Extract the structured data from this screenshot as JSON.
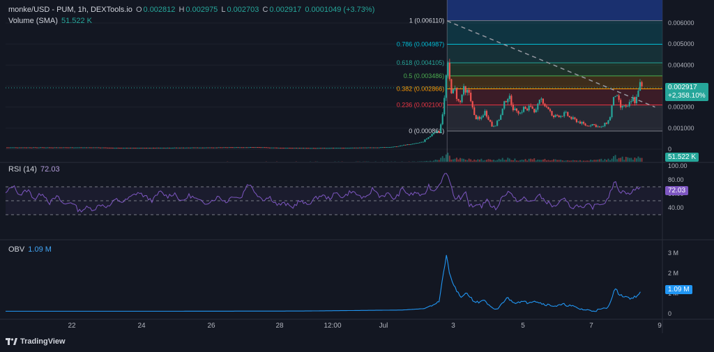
{
  "header": {
    "symbol": "monke/USD - PUM, 1h, DEXTools.io",
    "open_k": "O",
    "open": "0.002812",
    "high_k": "H",
    "high": "0.002975",
    "low_k": "L",
    "low": "0.002703",
    "close_k": "C",
    "close": "0.002917",
    "change": "0.0001049 (+3.73%)",
    "volume_label": "Volume (SMA)",
    "volume_value": "51.522 K"
  },
  "rsi_panel": {
    "label": "RSI (14)",
    "value": "72.03"
  },
  "obv_panel": {
    "label": "OBV",
    "value": "1.09 M"
  },
  "price_tag": {
    "price": "0.002917",
    "change": "+2,358.10%"
  },
  "volume_tag": "51.522 K",
  "rsi_tag": "72.03",
  "obv_tag": "1.09 M",
  "brand": "TradingView",
  "colors": {
    "background": "#131722",
    "up": "#26a69a",
    "down": "#ef5350",
    "rsi": "#7e57c2",
    "obv": "#2196f3",
    "selection": "#1e3a8a"
  },
  "chart_data": {
    "type": "candlestick",
    "price_axis": {
      "ticks": [
        0.006,
        0.005,
        0.004,
        0.003,
        0.002,
        0.001,
        0
      ],
      "tick_labels": [
        "0.006000",
        "0.005000",
        "0.004000",
        "0.003000",
        "0.002000",
        "0.001000",
        "0"
      ]
    },
    "time_axis": {
      "labels": [
        "22",
        "24",
        "26",
        "28",
        "12:00",
        "Jul",
        "3",
        "5",
        "7",
        "9"
      ]
    },
    "fibonacci": [
      {
        "ratio": "1",
        "price": 0.00611,
        "label": "1 (0.006110)",
        "color": "#787b86"
      },
      {
        "ratio": "0.786",
        "price": 0.004987,
        "label": "0.786 (0.004987)",
        "color": "#00bcd4"
      },
      {
        "ratio": "0.618",
        "price": 0.004105,
        "label": "0.618 (0.004105)",
        "color": "#26a69a"
      },
      {
        "ratio": "0.5",
        "price": 0.003486,
        "label": "0.5 (0.003486)",
        "color": "#4caf50"
      },
      {
        "ratio": "0.382",
        "price": 0.002866,
        "label": "0.382 (0.002866)",
        "color": "#ff9800"
      },
      {
        "ratio": "0.236",
        "price": 0.0021,
        "label": "0.236 (0.002100)",
        "color": "#f23645"
      },
      {
        "ratio": "0",
        "price": 0.000861,
        "label": "0 (0.000861)",
        "color": "#787b86"
      }
    ],
    "price_series": [
      {
        "t": 0,
        "p": 8e-05
      },
      {
        "t": 6,
        "p": 8e-05
      },
      {
        "t": 8,
        "p": 6e-05
      },
      {
        "t": 12,
        "p": 7e-05
      },
      {
        "t": 17,
        "p": 9e-05
      },
      {
        "t": 19,
        "p": 6e-05
      },
      {
        "t": 21,
        "p": 5e-05
      },
      {
        "t": 24,
        "p": 7e-05
      },
      {
        "t": 26,
        "p": 9e-05
      },
      {
        "t": 26.6,
        "p": 0.00013
      },
      {
        "t": 27.3,
        "p": 0.00022
      },
      {
        "t": 27.8,
        "p": 0.00025
      },
      {
        "t": 28.4,
        "p": 0.00035
      },
      {
        "t": 28.6,
        "p": 0.00048
      },
      {
        "t": 28.9,
        "p": 0.00062
      },
      {
        "t": 29.2,
        "p": 0.00085
      },
      {
        "t": 29.5,
        "p": 0.00082
      },
      {
        "t": 29.7,
        "p": 0.0015
      },
      {
        "t": 29.9,
        "p": 0.0026
      },
      {
        "t": 30.05,
        "p": 0.0042
      },
      {
        "t": 30.15,
        "p": 0.0036
      },
      {
        "t": 30.25,
        "p": 0.0031
      },
      {
        "t": 30.4,
        "p": 0.0026
      },
      {
        "t": 30.55,
        "p": 0.0029
      },
      {
        "t": 30.7,
        "p": 0.0025
      },
      {
        "t": 30.9,
        "p": 0.0021
      },
      {
        "t": 31.0,
        "p": 0.0024
      },
      {
        "t": 31.15,
        "p": 0.0029
      },
      {
        "t": 31.3,
        "p": 0.0026
      },
      {
        "t": 31.5,
        "p": 0.0028
      },
      {
        "t": 31.7,
        "p": 0.0023
      },
      {
        "t": 31.85,
        "p": 0.0016
      },
      {
        "t": 32.0,
        "p": 0.0015
      },
      {
        "t": 32.3,
        "p": 0.0014
      },
      {
        "t": 32.6,
        "p": 0.0018
      },
      {
        "t": 32.85,
        "p": 0.0015
      },
      {
        "t": 33.1,
        "p": 0.0011
      },
      {
        "t": 33.4,
        "p": 0.0012
      },
      {
        "t": 33.7,
        "p": 0.0016
      },
      {
        "t": 34.0,
        "p": 0.0023
      },
      {
        "t": 34.2,
        "p": 0.0025
      },
      {
        "t": 34.4,
        "p": 0.0023
      },
      {
        "t": 34.6,
        "p": 0.0018
      },
      {
        "t": 34.8,
        "p": 0.0019
      },
      {
        "t": 35.0,
        "p": 0.0017
      },
      {
        "t": 35.3,
        "p": 0.002
      },
      {
        "t": 35.5,
        "p": 0.0018
      },
      {
        "t": 35.7,
        "p": 0.0021
      },
      {
        "t": 35.9,
        "p": 0.0019
      },
      {
        "t": 36.1,
        "p": 0.0018
      },
      {
        "t": 36.3,
        "p": 0.0022
      },
      {
        "t": 36.5,
        "p": 0.0024
      },
      {
        "t": 36.7,
        "p": 0.0021
      },
      {
        "t": 37.0,
        "p": 0.0019
      },
      {
        "t": 37.2,
        "p": 0.0015
      },
      {
        "t": 37.5,
        "p": 0.0016
      },
      {
        "t": 37.8,
        "p": 0.0016
      },
      {
        "t": 38.1,
        "p": 0.0017
      },
      {
        "t": 38.4,
        "p": 0.0015
      },
      {
        "t": 38.7,
        "p": 0.0014
      },
      {
        "t": 39.0,
        "p": 0.0013
      },
      {
        "t": 39.3,
        "p": 0.0012
      },
      {
        "t": 39.6,
        "p": 0.0011
      },
      {
        "t": 39.9,
        "p": 0.0012
      },
      {
        "t": 40.2,
        "p": 0.0011
      },
      {
        "t": 40.5,
        "p": 0.001
      },
      {
        "t": 40.8,
        "p": 0.0012
      },
      {
        "t": 41.1,
        "p": 0.0014
      },
      {
        "t": 41.3,
        "p": 0.0022
      },
      {
        "t": 41.5,
        "p": 0.0026
      },
      {
        "t": 41.7,
        "p": 0.0023
      },
      {
        "t": 41.9,
        "p": 0.0019
      },
      {
        "t": 42.1,
        "p": 0.0021
      },
      {
        "t": 42.3,
        "p": 0.0019
      },
      {
        "t": 42.5,
        "p": 0.0022
      },
      {
        "t": 42.7,
        "p": 0.0024
      },
      {
        "t": 42.9,
        "p": 0.0022
      },
      {
        "t": 43.0,
        "p": 0.0028
      },
      {
        "t": 43.2,
        "p": 0.0031
      },
      {
        "t": 43.3,
        "p": 0.0029
      }
    ],
    "volume_series": [
      {
        "t": 0,
        "v": 0.01
      },
      {
        "t": 28,
        "v": 0.02
      },
      {
        "t": 29,
        "v": 0.08
      },
      {
        "t": 29.9,
        "v": 0.55
      },
      {
        "t": 30.05,
        "v": 1.0
      },
      {
        "t": 30.3,
        "v": 0.45
      },
      {
        "t": 30.6,
        "v": 0.3
      },
      {
        "t": 31.2,
        "v": 0.25
      },
      {
        "t": 32,
        "v": 0.2
      },
      {
        "t": 33,
        "v": 0.22
      },
      {
        "t": 34,
        "v": 0.3
      },
      {
        "t": 35,
        "v": 0.22
      },
      {
        "t": 36,
        "v": 0.28
      },
      {
        "t": 37,
        "v": 0.18
      },
      {
        "t": 38,
        "v": 0.15
      },
      {
        "t": 39,
        "v": 0.15
      },
      {
        "t": 40,
        "v": 0.14
      },
      {
        "t": 41.2,
        "v": 0.35
      },
      {
        "t": 41.5,
        "v": 0.55
      },
      {
        "t": 42,
        "v": 0.35
      },
      {
        "t": 42.6,
        "v": 0.4
      },
      {
        "t": 43.0,
        "v": 0.6
      },
      {
        "t": 43.3,
        "v": 0.45
      }
    ],
    "rsi": {
      "levels": [
        80,
        70,
        60,
        50,
        40,
        30
      ],
      "tick_labels": [
        "100.00",
        "80.00",
        "60.00",
        "40.00"
      ],
      "series": [
        {
          "t": 0,
          "v": 60
        },
        {
          "t": 0.5,
          "v": 72
        },
        {
          "t": 1,
          "v": 58
        },
        {
          "t": 1.5,
          "v": 66
        },
        {
          "t": 2,
          "v": 52
        },
        {
          "t": 2.5,
          "v": 62
        },
        {
          "t": 3,
          "v": 47
        },
        {
          "t": 3.5,
          "v": 56
        },
        {
          "t": 4,
          "v": 44
        },
        {
          "t": 4.5,
          "v": 49
        },
        {
          "t": 5,
          "v": 35
        },
        {
          "t": 5.5,
          "v": 40
        },
        {
          "t": 6,
          "v": 38
        },
        {
          "t": 6.5,
          "v": 45
        },
        {
          "t": 7,
          "v": 41
        },
        {
          "t": 7.5,
          "v": 52
        },
        {
          "t": 8,
          "v": 48
        },
        {
          "t": 8.5,
          "v": 55
        },
        {
          "t": 9,
          "v": 62
        },
        {
          "t": 9.5,
          "v": 56
        },
        {
          "t": 10,
          "v": 50
        },
        {
          "t": 10.5,
          "v": 63
        },
        {
          "t": 11,
          "v": 56
        },
        {
          "t": 11.5,
          "v": 61
        },
        {
          "t": 12,
          "v": 48
        },
        {
          "t": 12.5,
          "v": 58
        },
        {
          "t": 13,
          "v": 52
        },
        {
          "t": 13.5,
          "v": 46
        },
        {
          "t": 14,
          "v": 50
        },
        {
          "t": 14.5,
          "v": 56
        },
        {
          "t": 15,
          "v": 48
        },
        {
          "t": 15.5,
          "v": 58
        },
        {
          "t": 16,
          "v": 53
        },
        {
          "t": 16.5,
          "v": 76
        },
        {
          "t": 17,
          "v": 62
        },
        {
          "t": 17.5,
          "v": 52
        },
        {
          "t": 18,
          "v": 55
        },
        {
          "t": 18.5,
          "v": 44
        },
        {
          "t": 19,
          "v": 46
        },
        {
          "t": 19.5,
          "v": 40
        },
        {
          "t": 20,
          "v": 50
        },
        {
          "t": 20.5,
          "v": 44
        },
        {
          "t": 21,
          "v": 52
        },
        {
          "t": 21.5,
          "v": 58
        },
        {
          "t": 22,
          "v": 53
        },
        {
          "t": 22.5,
          "v": 61
        },
        {
          "t": 23,
          "v": 55
        },
        {
          "t": 23.5,
          "v": 64
        },
        {
          "t": 24,
          "v": 58
        },
        {
          "t": 24.5,
          "v": 52
        },
        {
          "t": 25,
          "v": 68
        },
        {
          "t": 25.5,
          "v": 56
        },
        {
          "t": 26,
          "v": 60
        },
        {
          "t": 26.5,
          "v": 52
        },
        {
          "t": 27,
          "v": 67
        },
        {
          "t": 27.5,
          "v": 58
        },
        {
          "t": 28,
          "v": 62
        },
        {
          "t": 28.4,
          "v": 55
        },
        {
          "t": 28.8,
          "v": 72
        },
        {
          "t": 29.1,
          "v": 63
        },
        {
          "t": 29.5,
          "v": 74
        },
        {
          "t": 29.8,
          "v": 84
        },
        {
          "t": 30.0,
          "v": 92
        },
        {
          "t": 30.2,
          "v": 80
        },
        {
          "t": 30.4,
          "v": 66
        },
        {
          "t": 30.6,
          "v": 52
        },
        {
          "t": 30.8,
          "v": 58
        },
        {
          "t": 31,
          "v": 50
        },
        {
          "t": 31.3,
          "v": 62
        },
        {
          "t": 31.5,
          "v": 46
        },
        {
          "t": 31.8,
          "v": 40
        },
        {
          "t": 32.1,
          "v": 47
        },
        {
          "t": 32.4,
          "v": 42
        },
        {
          "t": 32.7,
          "v": 51
        },
        {
          "t": 33,
          "v": 44
        },
        {
          "t": 33.4,
          "v": 38
        },
        {
          "t": 33.7,
          "v": 52
        },
        {
          "t": 34,
          "v": 60
        },
        {
          "t": 34.3,
          "v": 64
        },
        {
          "t": 34.6,
          "v": 52
        },
        {
          "t": 35,
          "v": 50
        },
        {
          "t": 35.3,
          "v": 54
        },
        {
          "t": 35.6,
          "v": 48
        },
        {
          "t": 36,
          "v": 52
        },
        {
          "t": 36.3,
          "v": 58
        },
        {
          "t": 36.6,
          "v": 52
        },
        {
          "t": 37,
          "v": 46
        },
        {
          "t": 37.3,
          "v": 41
        },
        {
          "t": 37.6,
          "v": 46
        },
        {
          "t": 38,
          "v": 52
        },
        {
          "t": 38.3,
          "v": 45
        },
        {
          "t": 38.6,
          "v": 40
        },
        {
          "t": 39,
          "v": 44
        },
        {
          "t": 39.3,
          "v": 37
        },
        {
          "t": 39.6,
          "v": 44
        },
        {
          "t": 40,
          "v": 40
        },
        {
          "t": 40.3,
          "v": 48
        },
        {
          "t": 40.6,
          "v": 44
        },
        {
          "t": 41,
          "v": 55
        },
        {
          "t": 41.3,
          "v": 68
        },
        {
          "t": 41.5,
          "v": 80
        },
        {
          "t": 41.7,
          "v": 68
        },
        {
          "t": 41.9,
          "v": 60
        },
        {
          "t": 42.1,
          "v": 66
        },
        {
          "t": 42.4,
          "v": 58
        },
        {
          "t": 42.7,
          "v": 64
        },
        {
          "t": 43,
          "v": 68
        },
        {
          "t": 43.3,
          "v": 72
        }
      ]
    },
    "obv": {
      "tick_labels": [
        "3 M",
        "2 M",
        "1 M",
        "0"
      ],
      "series": [
        {
          "t": 0,
          "v": 0.12
        },
        {
          "t": 10,
          "v": 0.12
        },
        {
          "t": 20,
          "v": 0.13
        },
        {
          "t": 27,
          "v": 0.18
        },
        {
          "t": 28.5,
          "v": 0.25
        },
        {
          "t": 29.5,
          "v": 0.6
        },
        {
          "t": 30.0,
          "v": 2.9
        },
        {
          "t": 30.2,
          "v": 2.0
        },
        {
          "t": 30.5,
          "v": 1.4
        },
        {
          "t": 30.8,
          "v": 1.0
        },
        {
          "t": 31,
          "v": 0.75
        },
        {
          "t": 31.3,
          "v": 1.05
        },
        {
          "t": 31.6,
          "v": 0.85
        },
        {
          "t": 31.9,
          "v": 0.6
        },
        {
          "t": 32.2,
          "v": 0.55
        },
        {
          "t": 32.5,
          "v": 0.7
        },
        {
          "t": 32.8,
          "v": 0.45
        },
        {
          "t": 33.2,
          "v": 0.2
        },
        {
          "t": 33.5,
          "v": 0.25
        },
        {
          "t": 33.8,
          "v": 0.5
        },
        {
          "t": 34.1,
          "v": 0.8
        },
        {
          "t": 34.4,
          "v": 0.65
        },
        {
          "t": 34.7,
          "v": 0.55
        },
        {
          "t": 35,
          "v": 0.6
        },
        {
          "t": 35.5,
          "v": 0.55
        },
        {
          "t": 36,
          "v": 0.65
        },
        {
          "t": 36.5,
          "v": 0.5
        },
        {
          "t": 37,
          "v": 0.42
        },
        {
          "t": 37.5,
          "v": 0.38
        },
        {
          "t": 38,
          "v": 0.45
        },
        {
          "t": 38.5,
          "v": 0.38
        },
        {
          "t": 39,
          "v": 0.25
        },
        {
          "t": 39.5,
          "v": 0.18
        },
        {
          "t": 40,
          "v": 0.15
        },
        {
          "t": 40.5,
          "v": 0.2
        },
        {
          "t": 41,
          "v": 0.3
        },
        {
          "t": 41.3,
          "v": 0.9
        },
        {
          "t": 41.5,
          "v": 1.25
        },
        {
          "t": 41.8,
          "v": 0.9
        },
        {
          "t": 42.2,
          "v": 0.85
        },
        {
          "t": 42.6,
          "v": 0.75
        },
        {
          "t": 43,
          "v": 0.9
        },
        {
          "t": 43.3,
          "v": 1.09
        }
      ]
    },
    "trendline": {
      "from": {
        "t": 30.05,
        "p": 0.0061
      },
      "to": {
        "t": 44.2,
        "p": 0.002
      }
    }
  }
}
